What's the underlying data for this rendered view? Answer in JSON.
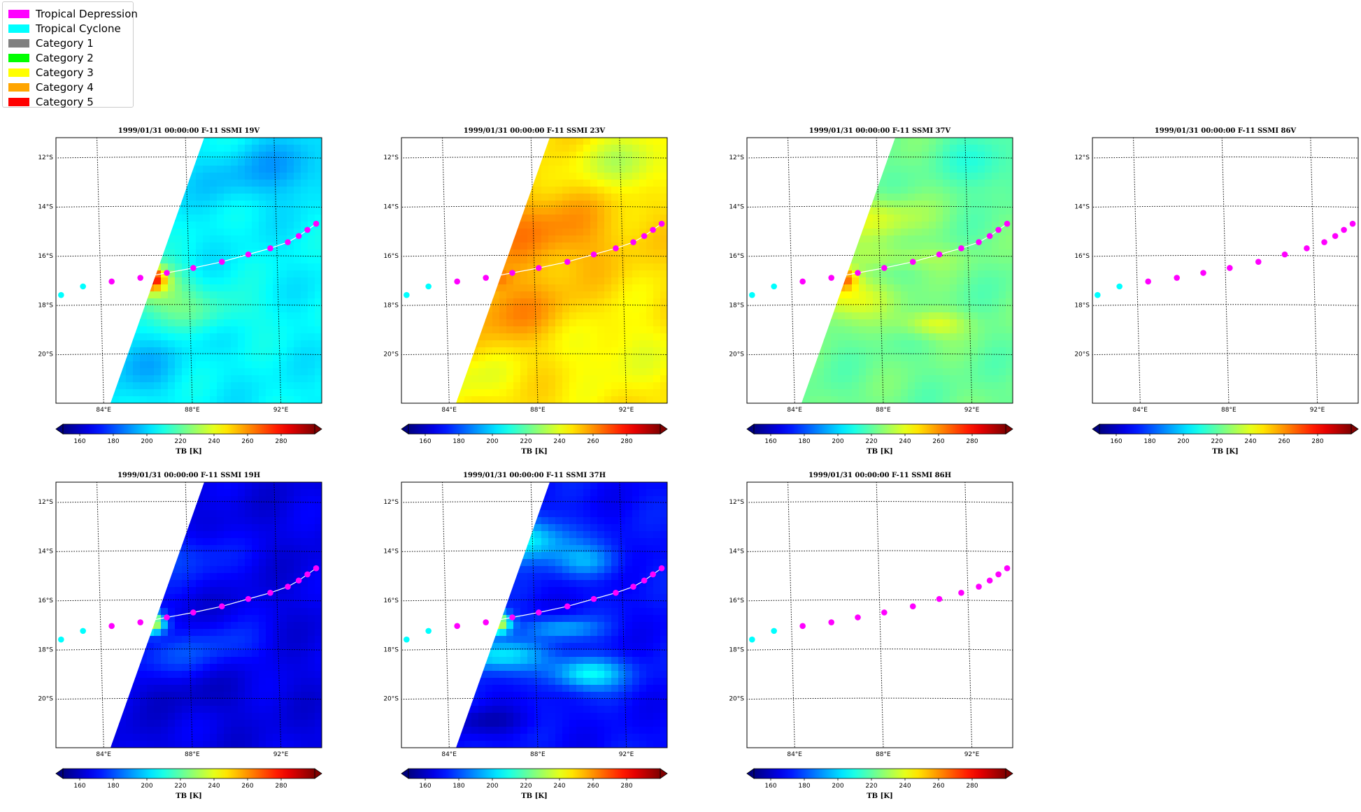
{
  "legend": {
    "items": [
      {
        "label": "Tropical Depression",
        "color": "#ff00ff"
      },
      {
        "label": "Tropical Cyclone",
        "color": "#00ffff"
      },
      {
        "label": "Category 1",
        "color": "#808080"
      },
      {
        "label": "Category 2",
        "color": "#00ff00"
      },
      {
        "label": "Category 3",
        "color": "#ffff00"
      },
      {
        "label": "Category 4",
        "color": "#ffa500"
      },
      {
        "label": "Category 5",
        "color": "#ff0000"
      }
    ]
  },
  "chart_data": [
    {
      "type": "heatmap",
      "title": "1999/01/31 00:00:00  F-11 SSMI 19V",
      "channel": "19V",
      "field": "cyan-green",
      "swath": true
    },
    {
      "type": "heatmap",
      "title": "1999/01/31 00:00:00  F-11 SSMI 23V",
      "channel": "23V",
      "field": "orange-yellow",
      "swath": true
    },
    {
      "type": "heatmap",
      "title": "1999/01/31 00:00:00  F-11 SSMI 37V",
      "channel": "37V",
      "field": "green-yellow",
      "swath": true
    },
    {
      "type": "heatmap",
      "title": "1999/01/31 00:00:00  F-11 SSMI 86V",
      "channel": "86V",
      "field": "none",
      "swath": false
    },
    {
      "type": "heatmap",
      "title": "1999/01/31 00:00:00  F-11 SSMI 19H",
      "channel": "19H",
      "field": "dark-blue",
      "swath": true
    },
    {
      "type": "heatmap",
      "title": "1999/01/31 00:00:00  F-11 SSMI 37H",
      "channel": "37H",
      "field": "blue-green",
      "swath": true
    },
    {
      "type": "heatmap",
      "title": "1999/01/31 00:00:00  F-11 SSMI 86H",
      "channel": "86H",
      "field": "none",
      "swath": false
    }
  ],
  "map": {
    "lat_ticks": [
      "12°S",
      "14°S",
      "16°S",
      "18°S",
      "20°S"
    ],
    "lon_ticks": [
      "84°E",
      "88°E",
      "92°E"
    ],
    "colorbar": {
      "label": "TB [K]",
      "ticks": [
        "160",
        "180",
        "200",
        "220",
        "240",
        "260",
        "280"
      ],
      "range": [
        150,
        300
      ]
    },
    "track": [
      {
        "lon": 82.2,
        "lat": -17.6,
        "cat": "Tropical Cyclone"
      },
      {
        "lon": 83.2,
        "lat": -17.25,
        "cat": "Tropical Cyclone"
      },
      {
        "lon": 84.5,
        "lat": -17.05,
        "cat": "Tropical Depression"
      },
      {
        "lon": 85.8,
        "lat": -16.9,
        "cat": "Tropical Depression"
      },
      {
        "lon": 87.0,
        "lat": -16.7,
        "cat": "Tropical Depression"
      },
      {
        "lon": 88.2,
        "lat": -16.5,
        "cat": "Tropical Depression"
      },
      {
        "lon": 89.5,
        "lat": -16.25,
        "cat": "Tropical Depression"
      },
      {
        "lon": 90.7,
        "lat": -15.95,
        "cat": "Tropical Depression"
      },
      {
        "lon": 91.7,
        "lat": -15.7,
        "cat": "Tropical Depression"
      },
      {
        "lon": 92.5,
        "lat": -15.45,
        "cat": "Tropical Depression"
      },
      {
        "lon": 93.0,
        "lat": -15.2,
        "cat": "Tropical Depression"
      },
      {
        "lon": 93.4,
        "lat": -14.95,
        "cat": "Tropical Depression"
      },
      {
        "lon": 93.8,
        "lat": -14.7,
        "cat": "Tropical Depression"
      }
    ]
  }
}
